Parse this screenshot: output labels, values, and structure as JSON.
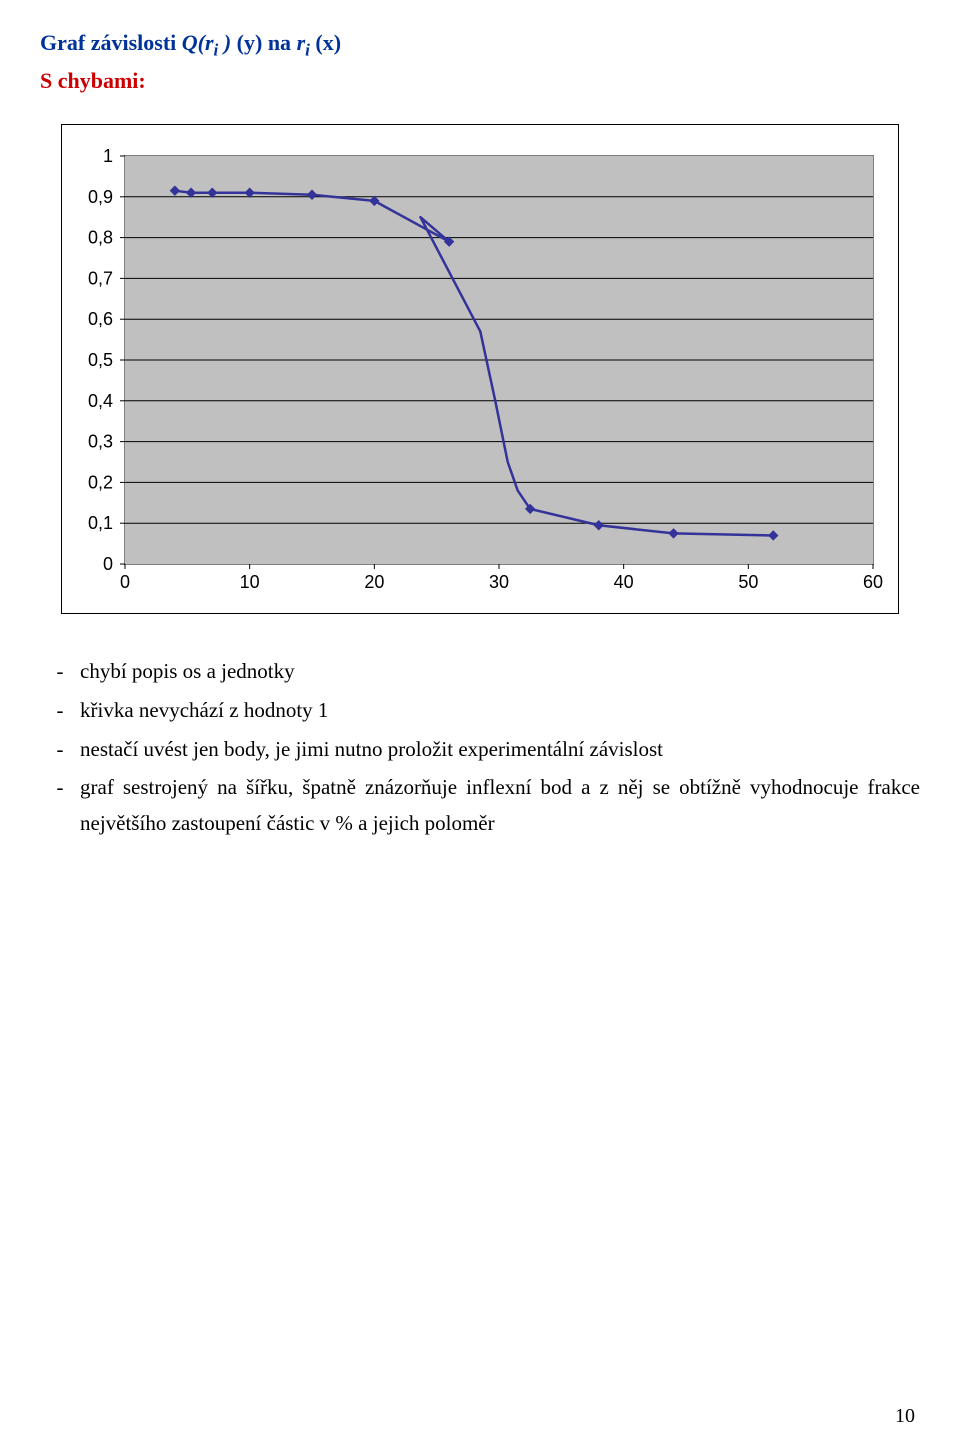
{
  "title": {
    "prefix": "Graf závislosti ",
    "func": "Q(r",
    "funcSub": "i",
    "funcClose": " )",
    "yPart": " (y)  ",
    "naPart": "na ",
    "rPart": "r",
    "rSub": "i",
    "xPart": "  (x)"
  },
  "subtitle": "S chybami:",
  "chart": {
    "type": "line-scatter",
    "background_color": "#c0c0c0",
    "grid_color": "#000000",
    "border_color": "#808080",
    "box_border_color": "#000000",
    "line_color": "#333399",
    "marker_color": "#333399",
    "marker_shape": "diamond",
    "marker_size": 9,
    "line_width": 2.5,
    "tick_font_size": 18,
    "tick_font_color": "#000000",
    "xlim": [
      0,
      60
    ],
    "ylim": [
      0,
      1
    ],
    "xticks": [
      0,
      10,
      20,
      30,
      40,
      50,
      60
    ],
    "yticks": [
      0,
      0.1,
      0.2,
      0.3,
      0.4,
      0.5,
      0.6,
      0.7,
      0.8,
      0.9,
      1
    ],
    "ytick_labels": [
      "0",
      "0,1",
      "0,2",
      "0,3",
      "0,4",
      "0,5",
      "0,6",
      "0,7",
      "0,8",
      "0,9",
      "1"
    ],
    "xtick_labels": [
      "0",
      "10",
      "20",
      "30",
      "40",
      "50",
      "60"
    ],
    "points": [
      {
        "x": 4,
        "y": 0.915
      },
      {
        "x": 5.3,
        "y": 0.91
      },
      {
        "x": 7,
        "y": 0.91
      },
      {
        "x": 10,
        "y": 0.91
      },
      {
        "x": 15,
        "y": 0.905
      },
      {
        "x": 20,
        "y": 0.89
      },
      {
        "x": 26,
        "y": 0.79
      },
      {
        "x": 32.5,
        "y": 0.135
      },
      {
        "x": 38,
        "y": 0.095
      },
      {
        "x": 44,
        "y": 0.075
      },
      {
        "x": 52,
        "y": 0.07
      }
    ],
    "curve_extra_points": [
      {
        "x": 23.7,
        "y": 0.85
      },
      {
        "x": 28.5,
        "y": 0.57
      },
      {
        "x": 29.7,
        "y": 0.4
      },
      {
        "x": 30.7,
        "y": 0.25
      },
      {
        "x": 31.5,
        "y": 0.18
      }
    ]
  },
  "bullets": [
    "chybí popis os a jednotky",
    "křivka nevychází z hodnoty 1",
    "nestačí uvést jen body, je jimi nutno proložit experimentální závislost",
    "graf sestrojený na šířku, špatně znázorňuje  inflexní bod a z něj se obtížně vyhodnocuje frakce největšího zastoupení částic v % a jejich poloměr"
  ],
  "page_number": "10"
}
